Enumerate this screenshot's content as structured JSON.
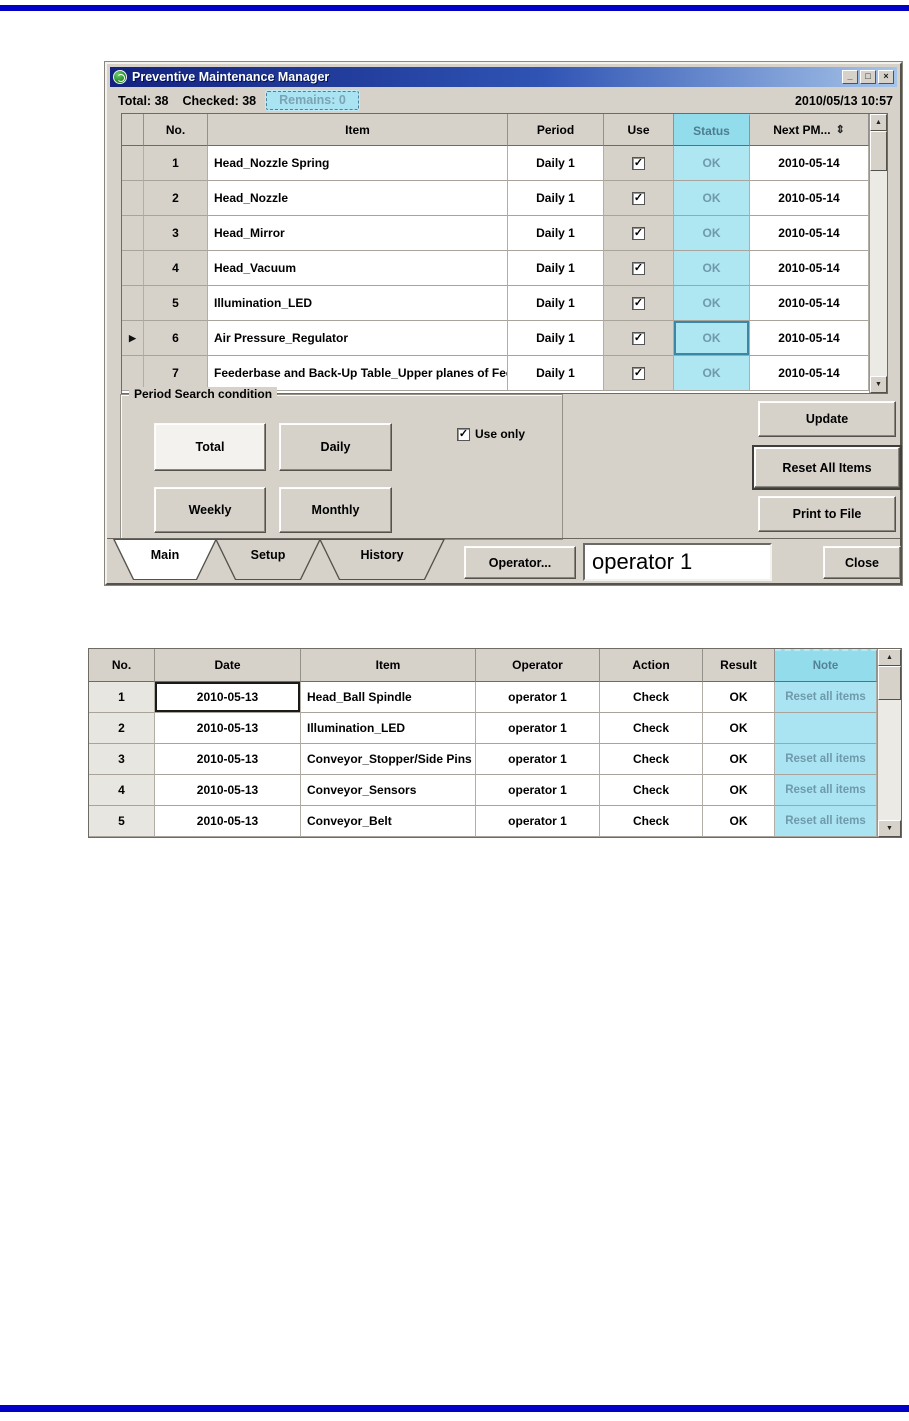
{
  "window": {
    "title": "Preventive Maintenance Manager",
    "stats": {
      "total": "Total: 38",
      "checked": "Checked: 38",
      "remains": "Remains: 0"
    },
    "datetime": "2010/05/13 10:57"
  },
  "icons": {
    "minimize": "_",
    "maximize": "□",
    "close": "×",
    "sort": "⇕",
    "row_pointer": "▶",
    "checkbox_check": "✓",
    "scroll_up": "▲",
    "scroll_down": "▼"
  },
  "main_table": {
    "columns": {
      "no": "No.",
      "item": "Item",
      "period": "Period",
      "use": "Use",
      "status": "Status",
      "next_pm": "Next PM..."
    },
    "rows": [
      {
        "no": "1",
        "item": "Head_Nozzle Spring",
        "period": "Daily 1",
        "use": true,
        "status": "OK",
        "next_pm": "2010-05-14",
        "selected": false
      },
      {
        "no": "2",
        "item": "Head_Nozzle",
        "period": "Daily 1",
        "use": true,
        "status": "OK",
        "next_pm": "2010-05-14",
        "selected": false
      },
      {
        "no": "3",
        "item": "Head_Mirror",
        "period": "Daily 1",
        "use": true,
        "status": "OK",
        "next_pm": "2010-05-14",
        "selected": false
      },
      {
        "no": "4",
        "item": "Head_Vacuum",
        "period": "Daily 1",
        "use": true,
        "status": "OK",
        "next_pm": "2010-05-14",
        "selected": false
      },
      {
        "no": "5",
        "item": "Illumination_LED",
        "period": "Daily 1",
        "use": true,
        "status": "OK",
        "next_pm": "2010-05-14",
        "selected": false
      },
      {
        "no": "6",
        "item": "Air Pressure_Regulator",
        "period": "Daily 1",
        "use": true,
        "status": "OK",
        "next_pm": "2010-05-14",
        "selected": true
      },
      {
        "no": "7",
        "item": "Feederbase and Back-Up Table_Upper planes of Feederb",
        "period": "Daily 1",
        "use": true,
        "status": "OK",
        "next_pm": "2010-05-14",
        "selected": false
      }
    ]
  },
  "period_group": {
    "title": "Period Search condition",
    "buttons": [
      "Total",
      "Daily",
      "Weekly",
      "Monthly"
    ],
    "active_button": "Total",
    "use_only_label": "Use only",
    "use_only_checked": true
  },
  "action_buttons": {
    "update": "Update",
    "reset": "Reset All Items",
    "print": "Print to File"
  },
  "tabs": {
    "items": [
      "Main",
      "Setup",
      "History"
    ],
    "active": "Main"
  },
  "footer": {
    "operator_button": "Operator...",
    "operator_value": "operator 1",
    "close_button": "Close"
  },
  "history_table": {
    "columns": {
      "no": "No.",
      "date": "Date",
      "item": "Item",
      "operator": "Operator",
      "action": "Action",
      "result": "Result",
      "note": "Note"
    },
    "rows": [
      {
        "no": "1",
        "date": "2010-05-13",
        "item": "Head_Ball Spindle",
        "operator": "operator 1",
        "action": "Check",
        "result": "OK",
        "note": "Reset all items",
        "date_selected": true
      },
      {
        "no": "2",
        "date": "2010-05-13",
        "item": "Illumination_LED",
        "operator": "operator 1",
        "action": "Check",
        "result": "OK",
        "note": "",
        "date_selected": false
      },
      {
        "no": "3",
        "date": "2010-05-13",
        "item": "Conveyor_Stopper/Side Pins",
        "operator": "operator 1",
        "action": "Check",
        "result": "OK",
        "note": "Reset all items",
        "date_selected": false
      },
      {
        "no": "4",
        "date": "2010-05-13",
        "item": "Conveyor_Sensors",
        "operator": "operator 1",
        "action": "Check",
        "result": "OK",
        "note": "Reset all items",
        "date_selected": false
      },
      {
        "no": "5",
        "date": "2010-05-13",
        "item": "Conveyor_Belt",
        "operator": "operator 1",
        "action": "Check",
        "result": "OK",
        "note": "Reset all items",
        "date_selected": false
      }
    ]
  },
  "colors": {
    "highlight_cell": "#aee6f2",
    "highlight_header": "#93dcec",
    "highlight_text": "#6f9aab",
    "titlebar_left": "#13227f",
    "titlebar_right": "#a6c4e8",
    "chrome": "#d6d2ca",
    "page_rule": "#0000c6"
  }
}
